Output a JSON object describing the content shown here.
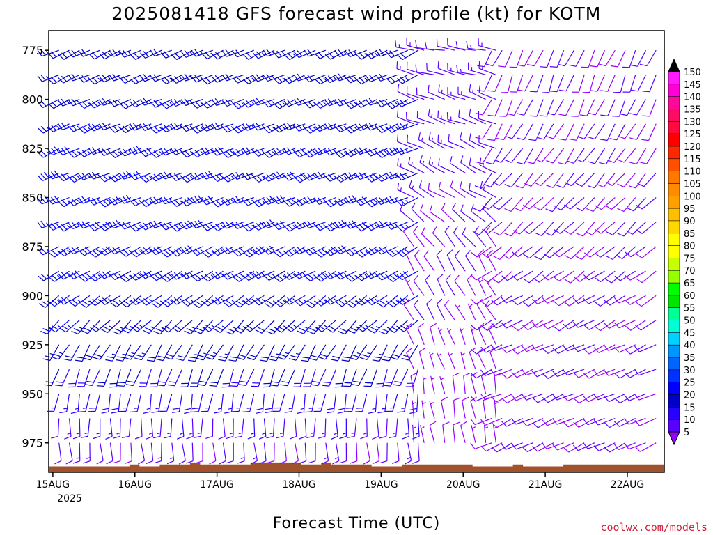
{
  "chart_data": {
    "type": "wind-barb-profile",
    "title": "2025081418 GFS forecast wind profile (kt) for KOTM",
    "xlabel": "Forecast Time (UTC)",
    "credit": "coolwx.com/models",
    "y_ticks": [
      "775",
      "800",
      "825",
      "850",
      "875",
      "900",
      "925",
      "950",
      "975"
    ],
    "y_tick_values": [
      775,
      800,
      825,
      850,
      875,
      900,
      925,
      950,
      975
    ],
    "y_range": [
      765,
      990
    ],
    "y_inverted": true,
    "x_ticks": [
      "15AUG",
      "16AUG",
      "17AUG",
      "18AUG",
      "19AUG",
      "20AUG",
      "21AUG",
      "22AUG"
    ],
    "x_year": "2025",
    "x_range_days": [
      -0.05,
      7.45
    ],
    "pressure_levels": [
      775,
      787.5,
      800,
      812.5,
      825,
      837.5,
      850,
      862.5,
      875,
      887.5,
      900,
      912.5,
      925,
      937.5,
      950,
      962.5,
      975,
      987.5
    ],
    "colorbar": {
      "levels": [
        "150",
        "145",
        "140",
        "135",
        "130",
        "125",
        "120",
        "115",
        "110",
        "105",
        "100",
        "95",
        "90",
        "85",
        "80",
        "75",
        "70",
        "65",
        "60",
        "55",
        "50",
        "45",
        "40",
        "35",
        "30",
        "25",
        "20",
        "15",
        "10",
        "5"
      ],
      "colors": [
        "#ff1aff",
        "#ff00d8",
        "#ff0a96",
        "#ff0a64",
        "#ff0a3c",
        "#ff0000",
        "#ff2800",
        "#ff5000",
        "#ff7800",
        "#ff8c00",
        "#ffa000",
        "#ffbe00",
        "#ffd700",
        "#ffff00",
        "#ffff00",
        "#c8ff00",
        "#96ff00",
        "#00ff00",
        "#00e600",
        "#00ff96",
        "#00ffd2",
        "#00d2ff",
        "#0096ff",
        "#0064ff",
        "#0032ff",
        "#0000ff",
        "#0000c8",
        "#2800ff",
        "#5a00ff",
        "#9600ff"
      ]
    },
    "segments": [
      {
        "name": "15AUG-19AUG",
        "t_start": -0.05,
        "t_end": 4.4,
        "step_hours": 3,
        "dir_profile_deg": [
          245,
          245,
          245,
          245,
          245,
          245,
          245,
          245,
          240,
          240,
          235,
          225,
          210,
          200,
          190,
          180,
          175,
          170
        ],
        "speed_profile_kt": [
          22,
          23,
          24,
          25,
          26,
          26,
          27,
          27,
          27,
          26,
          25,
          24,
          22,
          20,
          17,
          14,
          11,
          9
        ]
      },
      {
        "name": "19AUG-20AUG",
        "t_start": 4.4,
        "t_end": 5.35,
        "step_hours": 3,
        "dir_profile_deg": [
          280,
          285,
          290,
          290,
          295,
          300,
          300,
          310,
          320,
          330,
          330,
          330,
          340,
          340,
          350,
          350,
          350,
          340
        ],
        "speed_profile_kt": [
          12,
          12,
          12,
          12,
          12,
          12,
          11,
          10,
          10,
          10,
          9,
          9,
          8,
          8,
          8,
          8,
          8,
          7
        ]
      },
      {
        "name": "20AUG-22AUG",
        "t_start": 5.35,
        "t_end": 7.45,
        "step_hours": 3,
        "dir_profile_deg": [
          205,
          200,
          205,
          210,
          215,
          220,
          225,
          225,
          230,
          235,
          240,
          240,
          245,
          245,
          245,
          245,
          245,
          245
        ],
        "speed_profile_kt": [
          10,
          10,
          10,
          10,
          10,
          10,
          10,
          10,
          10,
          10,
          10,
          10,
          10,
          10,
          10,
          10,
          10,
          10
        ]
      }
    ],
    "terrain_pressure": [
      987,
      987,
      987,
      987,
      987,
      987,
      987,
      987,
      986,
      987,
      987,
      986,
      986,
      986,
      985,
      986,
      986,
      986,
      986,
      986,
      985,
      985,
      985,
      985,
      985,
      986,
      986,
      985,
      986,
      986,
      986,
      986,
      987,
      987,
      987,
      986,
      986,
      986,
      986,
      986,
      986,
      986,
      987,
      987,
      987,
      987,
      986,
      987,
      987,
      987,
      987,
      986,
      986,
      986,
      986,
      986,
      986,
      986,
      986,
      986,
      986
    ]
  }
}
